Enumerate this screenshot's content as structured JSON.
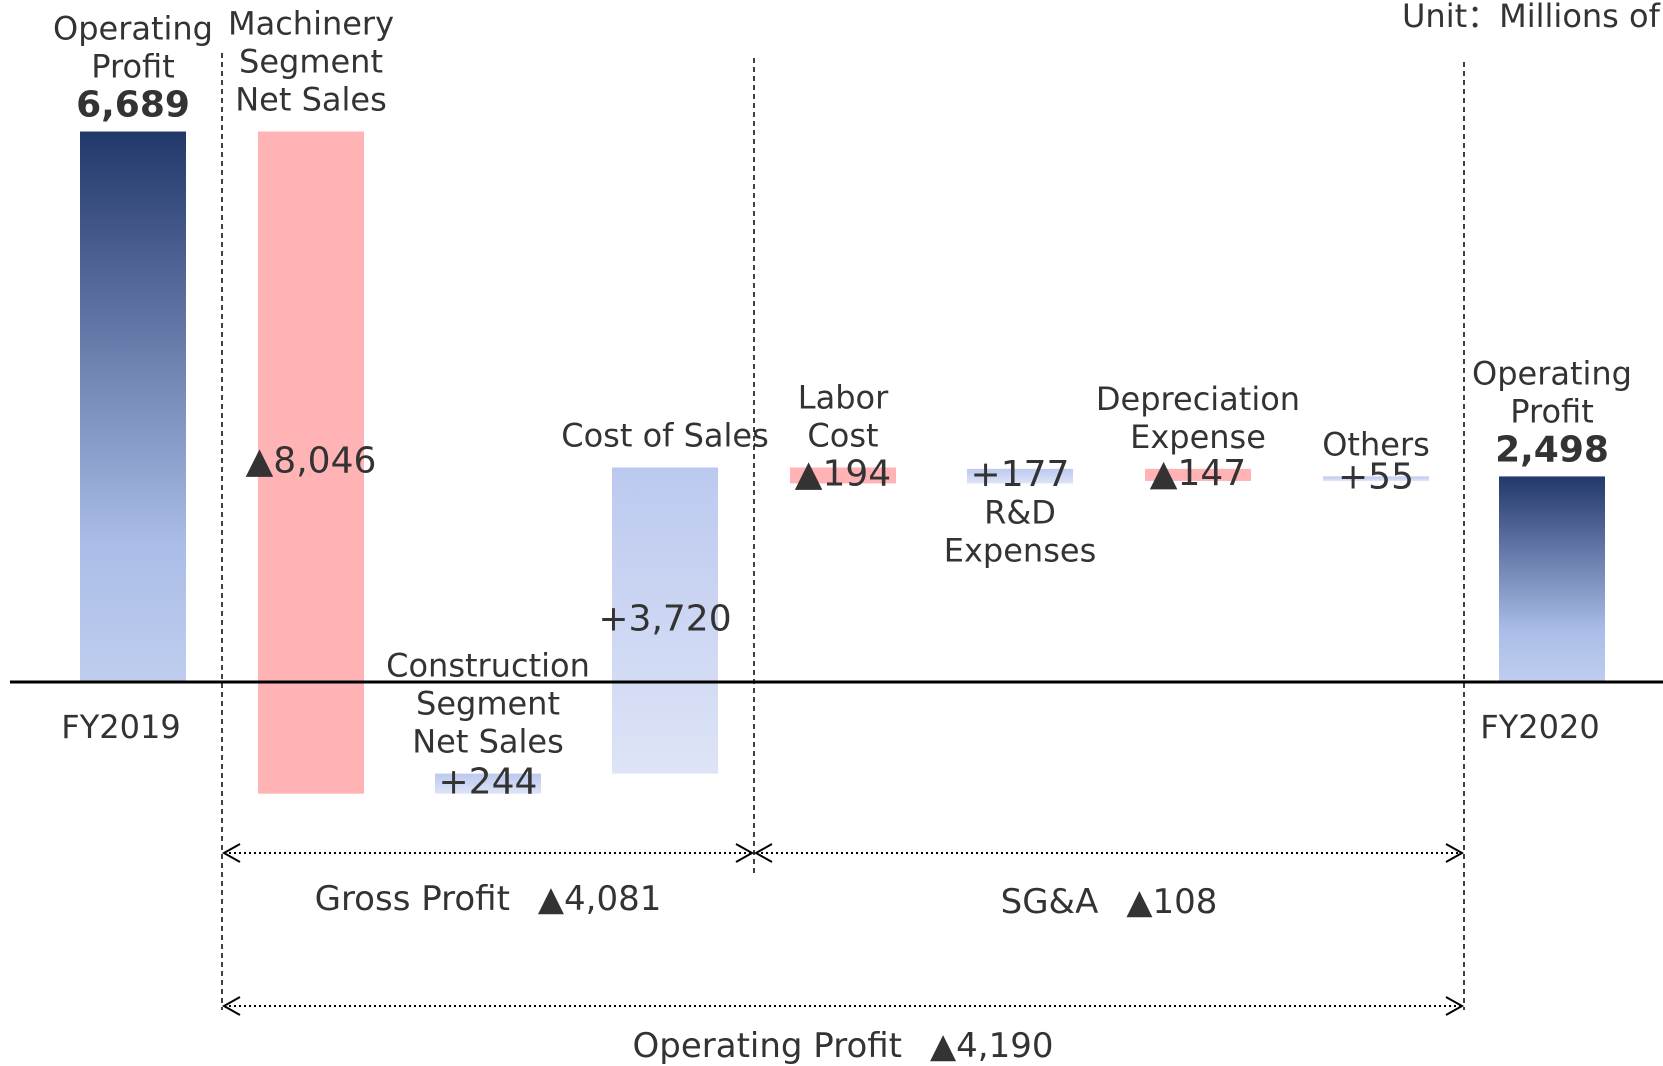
{
  "chart_data": {
    "type": "waterfall",
    "unit_label": "Unit：Millions of yen",
    "categories": [
      "Operating Profit",
      "Machinery Segment Net Sales",
      "Construction Segment Net Sales",
      "Cost of Sales",
      "Labor Cost",
      "R&D Expenses",
      "Depreciation Expense",
      "Others",
      "Operating Profit"
    ],
    "periods": [
      "FY2019",
      null,
      null,
      null,
      null,
      null,
      null,
      null,
      "FY2020"
    ],
    "measures": [
      "absolute",
      "relative",
      "relative",
      "relative",
      "relative",
      "relative",
      "relative",
      "relative",
      "absolute"
    ],
    "values": [
      6689,
      -8046,
      244,
      3720,
      -194,
      177,
      -147,
      55,
      2498
    ],
    "value_labels": [
      "6,689",
      "▲8,046",
      "+244",
      "+3,720",
      "▲194",
      "+177",
      "▲147",
      "+55",
      "2,498"
    ],
    "ylim": [
      -4666,
      8287
    ],
    "colors": {
      "total": "#22386a",
      "total_light": "#aabde8",
      "increase": "#bcc9ef",
      "decrease": "#ffb3b5"
    },
    "brackets": [
      {
        "label": "Gross Profit",
        "value": -4081,
        "value_label": "▲4,081"
      },
      {
        "label": "SG&A",
        "value": -108,
        "value_label": "▲108"
      },
      {
        "label": "Operating Profit",
        "value": -4190,
        "value_label": "▲4,190"
      }
    ]
  }
}
